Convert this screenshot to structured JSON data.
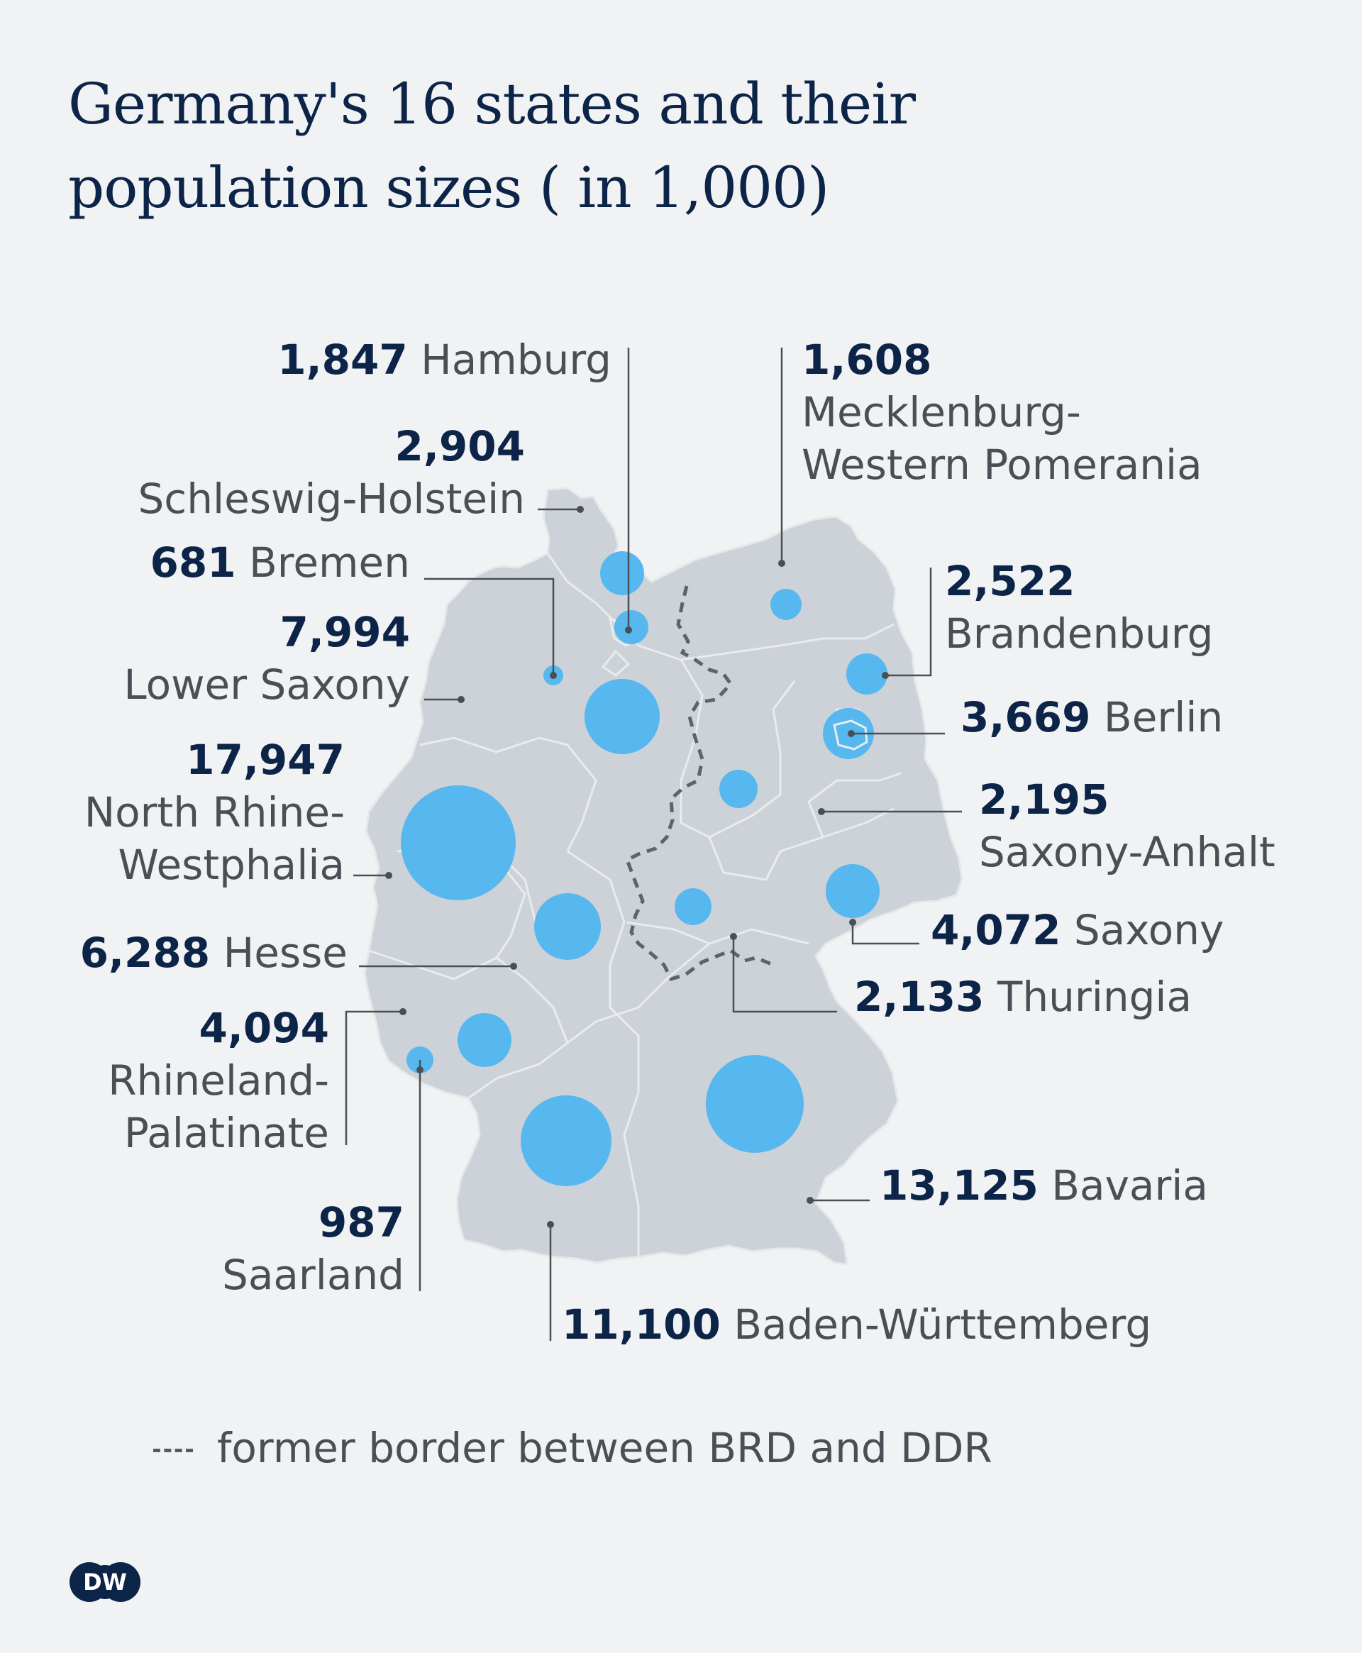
{
  "title": {
    "line1": "Germany's 16 states and their",
    "line2": "population sizes ( in 1,000)"
  },
  "legend": {
    "text": "former border between BRD and DDR"
  },
  "logo": {
    "text": "DW"
  },
  "colors": {
    "background": "#f1f2f4",
    "land": "#cdd2d8",
    "bubble": "#56b8ee",
    "number": "#0c2447",
    "label": "#4a4f55",
    "border_dashed": "#5d636a"
  },
  "states": [
    {
      "id": "hamburg",
      "value": "1,847",
      "name": "Hamburg"
    },
    {
      "id": "schleswig-holstein",
      "value": "2,904",
      "name": "Schleswig-Holstein"
    },
    {
      "id": "bremen",
      "value": "681",
      "name": "Bremen"
    },
    {
      "id": "lower-saxony",
      "value": "7,994",
      "name": "Lower Saxony"
    },
    {
      "id": "nrw",
      "value": "17,947",
      "name_line1": "North Rhine-",
      "name_line2": "Westphalia"
    },
    {
      "id": "hesse",
      "value": "6,288",
      "name": "Hesse"
    },
    {
      "id": "rhineland-palatinate",
      "value": "4,094",
      "name_line1": "Rhineland-",
      "name_line2": "Palatinate"
    },
    {
      "id": "saarland",
      "value": "987",
      "name": "Saarland"
    },
    {
      "id": "mecklenburg",
      "value": "1,608",
      "name_line1": "Mecklenburg-",
      "name_line2": "Western Pomerania"
    },
    {
      "id": "brandenburg",
      "value": "2,522",
      "name": "Brandenburg"
    },
    {
      "id": "berlin",
      "value": "3,669",
      "name": "Berlin"
    },
    {
      "id": "saxony-anhalt",
      "value": "2,195",
      "name": "Saxony-Anhalt"
    },
    {
      "id": "saxony",
      "value": "4,072",
      "name": "Saxony"
    },
    {
      "id": "thuringia",
      "value": "2,133",
      "name": "Thuringia"
    },
    {
      "id": "bavaria",
      "value": "13,125",
      "name": "Bavaria"
    },
    {
      "id": "baden-wurttemberg",
      "value": "11,100",
      "name": "Baden-Württemberg"
    }
  ]
}
